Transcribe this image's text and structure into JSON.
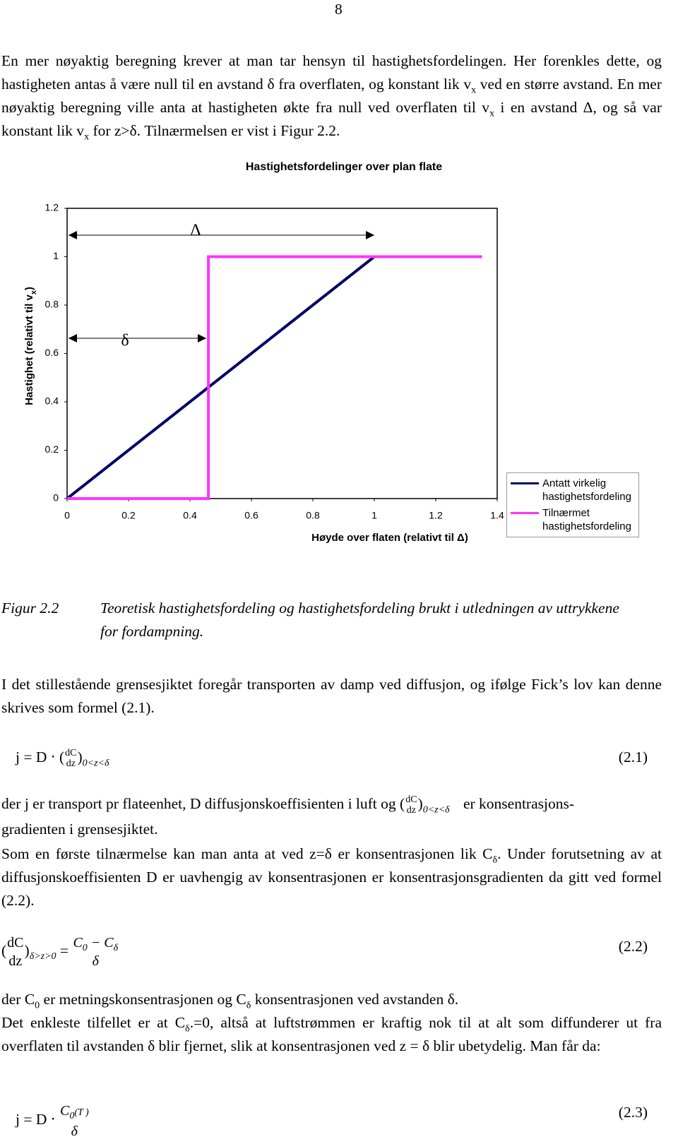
{
  "page_number": "8",
  "paragraphs": [
    [
      "En mer nøyaktig beregning krever at man tar hensyn til hastighetsfordelingen. Her forenkles dette, og hastigheten antas å være null til en avstand δ fra overflaten, og konstant lik v",
      "x",
      " ved en større avstand. En mer nøyaktig beregning ville anta at hastigheten økte fra null ved overflaten til v",
      "x",
      " i en avstand Δ, og så var konstant lik v",
      "x",
      " for z>δ. Tilnærmelsen er vist i Figur 2.2."
    ],
    [
      "I det stillestående grensesjiktet foregår transporten av damp ved diffusjon, og ifølge Fick’s lov kan denne skrives som formel (2.1)."
    ],
    [
      "der j er transport pr flateenhet, D diffusjonskoeffisienten i luft og (",
      "dC",
      "dz",
      ")",
      "0<z<δ",
      " er konsentrasjons-",
      "gradienten i grensesjiktet."
    ],
    [
      "Som en første tilnærmelse kan man anta at ved z=δ er konsentrasjonen lik C",
      "δ",
      ". Under forutsetning av at diffusjonskoeffisienten D er uavhengig av konsentrasjonen er konsentrasjonsgradienten da gitt ved formel (2.2)."
    ],
    [
      "der C",
      "0",
      " er metningskonsentrasjonen og C",
      "δ",
      " konsentrasjonen ved avstanden δ."
    ],
    [
      "Det enkleste tilfellet er at C",
      "δ",
      ".=0, altså at luftstrømmen er kraftig nok til at alt som diffunderer ut fra overflaten til avstanden δ blir fjernet, slik at konsentrasjonen ved z = δ blir ubetydelig.  Man får da:"
    ]
  ],
  "caption": {
    "label": "Figur 2.2",
    "text": "Teoretisk hastighetsfordeling og hastighetsfordeling brukt i utledningen av uttrykkene for fordampning."
  },
  "equations": [
    {
      "parts": [
        "j = D ⋅ (",
        "dC",
        "dz",
        ")",
        "0<z<δ"
      ],
      "number": "(2.1)"
    },
    {
      "parts": [
        "(",
        "dC",
        "dz",
        ")",
        "δ>z>0",
        " = ",
        "C",
        "0",
        " − C",
        "δ",
        "δ"
      ],
      "number": "(2.2)"
    },
    {
      "parts": [
        "j = D ⋅ ",
        "C",
        "0",
        "(T )",
        "δ"
      ],
      "number": "(2.3)"
    }
  ],
  "chart_data": {
    "type": "line",
    "title": "Hastighetsfordelinger over plan flate",
    "x_label": "Høyde over flaten (relativt til Δ)",
    "y_label": [
      "Hastighet (relativt til v",
      "x",
      ")"
    ],
    "xlim": [
      0,
      1.4
    ],
    "xticks": [
      0,
      0.2,
      0.4,
      0.6,
      0.8,
      1,
      1.2,
      1.4
    ],
    "ylim": [
      0,
      1.2
    ],
    "yticks": [
      0,
      0.2,
      0.4,
      0.6,
      0.8,
      1,
      1.2
    ],
    "grid": false,
    "legend": "right",
    "annotations": [
      "Δ",
      "δ"
    ],
    "series": [
      {
        "name": "Antatt virkelig hastighetsfordeling",
        "color": "#000066",
        "x": [
          0,
          1,
          1.35
        ],
        "values": [
          0,
          1,
          1
        ]
      },
      {
        "name": "Tilnærmet hastighetsfordeling",
        "color": "#ff33ff",
        "x": [
          0,
          0.46,
          0.46,
          1.35
        ],
        "values": [
          0,
          0,
          1,
          1
        ]
      }
    ]
  }
}
